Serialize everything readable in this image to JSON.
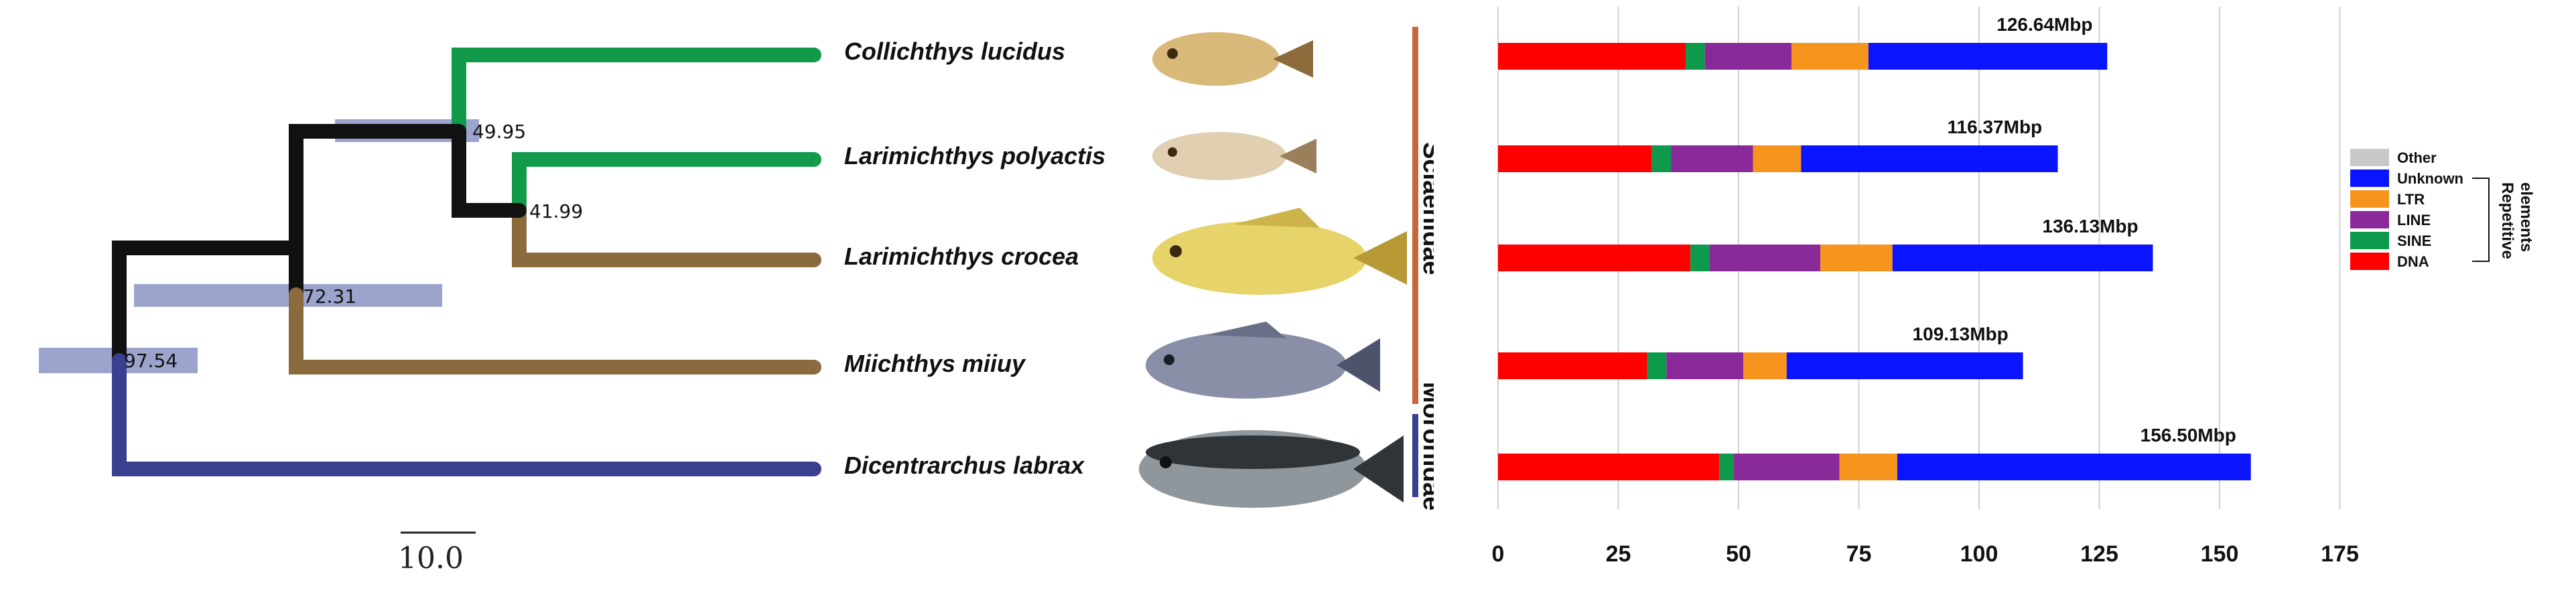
{
  "tree": {
    "species": [
      {
        "name": "Collichthys lucidus",
        "color": "#119a4a",
        "fish_colors": [
          "#d9b97a",
          "#8e6b3a"
        ]
      },
      {
        "name": "Larimichthys polyactis",
        "color": "#119a4a",
        "fish_colors": [
          "#e0cfb0",
          "#9a7f5a"
        ]
      },
      {
        "name": "Larimichthys crocea",
        "color": "#8b6a3e",
        "fish_colors": [
          "#e6d36a",
          "#b79a35"
        ]
      },
      {
        "name": "Miichthys miiuy",
        "color": "#8b6a3e",
        "fish_colors": [
          "#8a8fa8",
          "#4d536b"
        ]
      },
      {
        "name": "Dicentrarchus labrax",
        "color": "#3a3f8f",
        "fish_colors": [
          "#8f979c",
          "#2e3438"
        ]
      }
    ],
    "nodes": [
      {
        "label": "49.95"
      },
      {
        "label": "41.99"
      },
      {
        "label": "72.31"
      },
      {
        "label": "97.54"
      }
    ],
    "scale_bar": "10.0",
    "families": [
      {
        "name": "Sciaenidae",
        "color": "#c8663a"
      },
      {
        "name": "Moronidae",
        "color": "#3a3f8f"
      }
    ]
  },
  "chart_data": {
    "type": "bar",
    "orientation": "horizontal",
    "stacked": true,
    "categories": [
      "Collichthys lucidus",
      "Larimichthys polyactis",
      "Larimichthys crocea",
      "Miichthys miiuy",
      "Dicentrarchus labrax"
    ],
    "series": [
      {
        "name": "DNA",
        "color": "#ff0000",
        "values": [
          39,
          32,
          40,
          31,
          46
        ]
      },
      {
        "name": "SINE",
        "color": "#0d9a4a",
        "values": [
          4,
          4,
          4,
          4,
          3
        ]
      },
      {
        "name": "LINE",
        "color": "#8a2a9a",
        "values": [
          18,
          17,
          23,
          16,
          22
        ]
      },
      {
        "name": "LTR",
        "color": "#f7941d",
        "values": [
          16,
          10,
          15,
          9,
          12
        ]
      },
      {
        "name": "Unknown",
        "color": "#0a14ff",
        "values": [
          49.64,
          53.37,
          54.13,
          49.13,
          73.5
        ]
      },
      {
        "name": "Other",
        "color": "#c8c8c8",
        "values": [
          0,
          0,
          0,
          0,
          0
        ]
      }
    ],
    "totals": [
      "126.64Mbp",
      "116.37Mbp",
      "136.13Mbp",
      "109.13Mbp",
      "156.50Mbp"
    ],
    "x_ticks": [
      "0",
      "25",
      "50",
      "75",
      "100",
      "125",
      "150",
      "175"
    ],
    "xlim": [
      0,
      175
    ],
    "grid": true,
    "legend": {
      "placement": "right",
      "order": [
        "Other",
        "Unknown",
        "LTR",
        "LINE",
        "SINE",
        "DNA"
      ],
      "group_title": "Repetitive elements"
    }
  }
}
